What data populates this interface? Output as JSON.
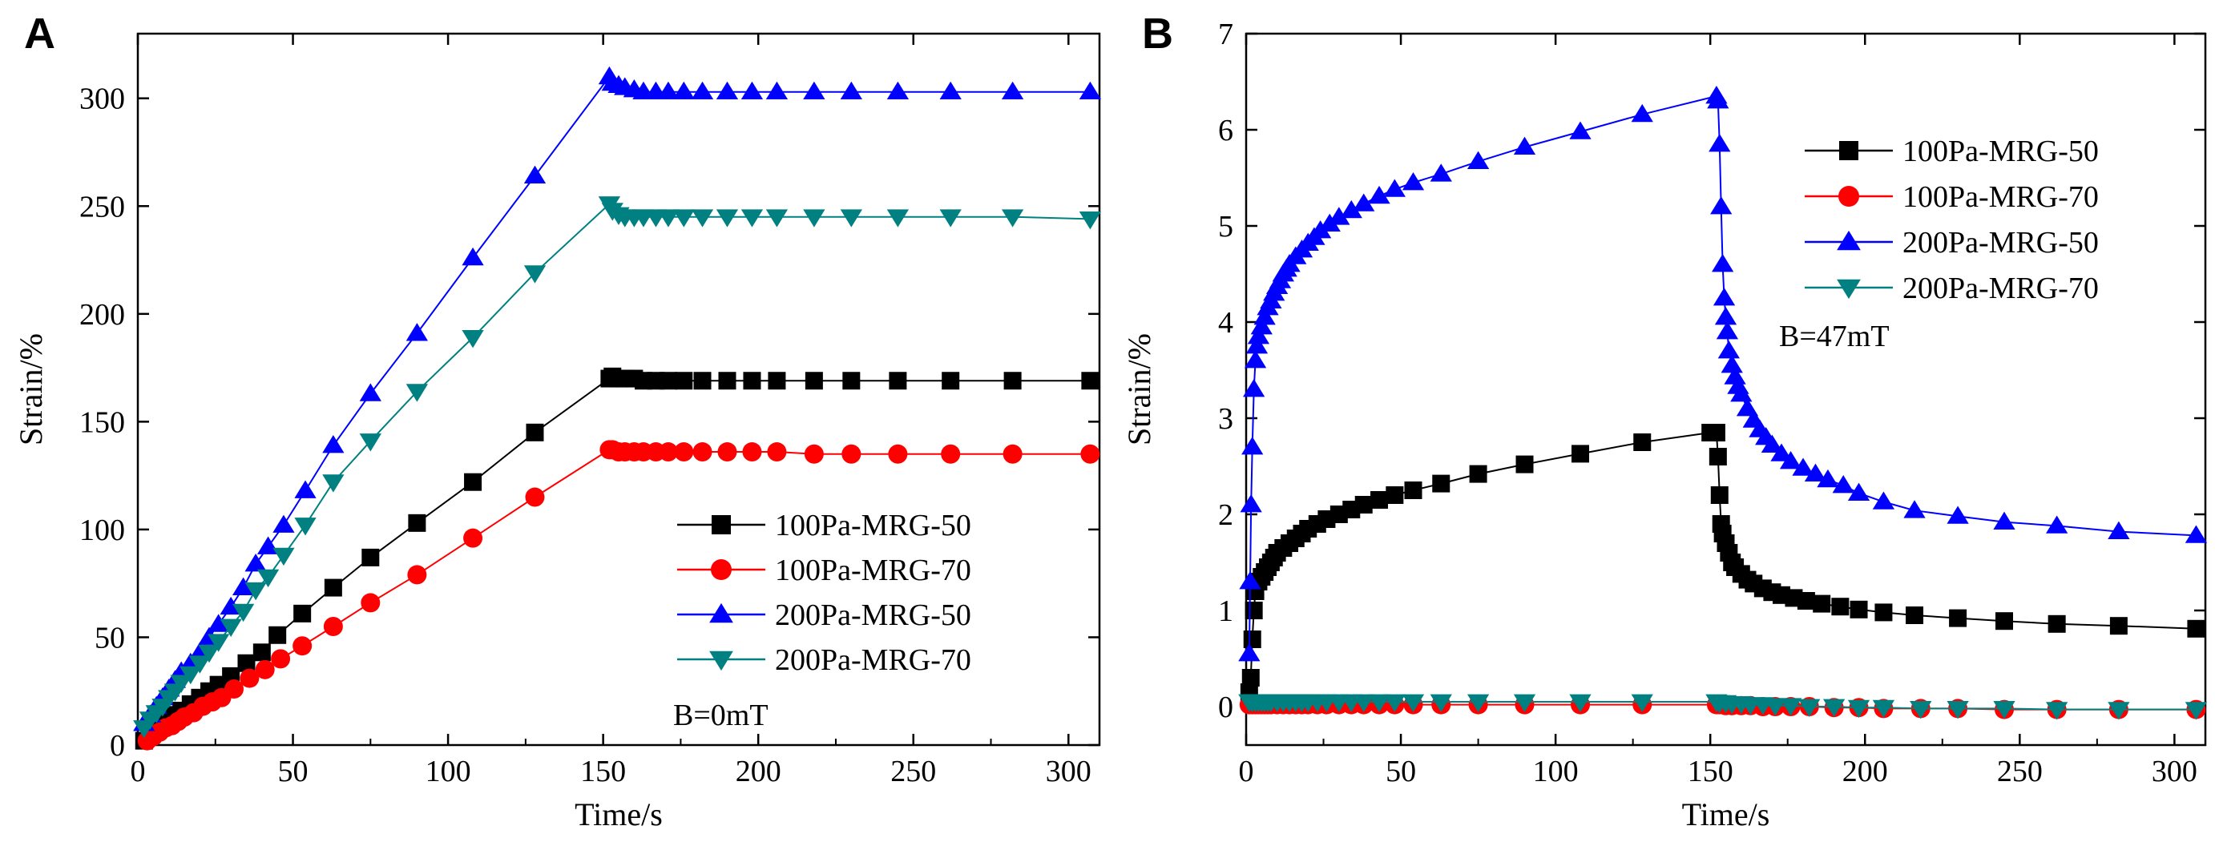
{
  "chart_data": [
    {
      "type": "line",
      "panel": "A",
      "title": "",
      "xlabel": "Time/s",
      "ylabel": "Strain/%",
      "xlim": [
        0,
        310
      ],
      "ylim": [
        0,
        330
      ],
      "xticks": [
        0,
        50,
        100,
        150,
        200,
        250,
        300
      ],
      "yticks": [
        0,
        50,
        100,
        150,
        200,
        250,
        300
      ],
      "annotation": "B=0mT",
      "legend_position": "bottom-right",
      "series": [
        {
          "name": "100Pa-MRG-50",
          "color": "#000000",
          "marker": "square",
          "x": [
            2,
            4,
            6,
            8,
            10,
            12,
            14,
            17,
            20,
            23,
            26,
            30,
            35,
            40,
            45,
            53,
            63,
            75,
            90,
            108,
            128,
            152,
            153,
            155,
            157,
            160,
            163,
            167,
            171,
            176,
            182,
            190,
            198,
            206,
            218,
            230,
            245,
            262,
            282,
            307
          ],
          "y": [
            2,
            5,
            8,
            10,
            12,
            14,
            16,
            19,
            22,
            25,
            28,
            32,
            38,
            43,
            51,
            61,
            73,
            87,
            103,
            122,
            145,
            170,
            171,
            170,
            170,
            170,
            169,
            169,
            169,
            169,
            169,
            169,
            169,
            169,
            169,
            169,
            169,
            169,
            169,
            169
          ]
        },
        {
          "name": "100Pa-MRG-70",
          "color": "#ff0000",
          "marker": "circle",
          "x": [
            3,
            5,
            7,
            9,
            11,
            13,
            15,
            18,
            21,
            24,
            27,
            31,
            36,
            41,
            46,
            53,
            63,
            75,
            90,
            108,
            128,
            152,
            153,
            155,
            157,
            160,
            163,
            167,
            171,
            176,
            182,
            190,
            198,
            206,
            218,
            230,
            245,
            262,
            282,
            307
          ],
          "y": [
            2,
            4,
            6,
            8,
            9,
            11,
            13,
            15,
            18,
            20,
            22,
            26,
            31,
            35,
            40,
            46,
            55,
            66,
            79,
            96,
            115,
            137,
            137,
            136,
            136,
            136,
            136,
            136,
            136,
            136,
            136,
            136,
            136,
            136,
            135,
            135,
            135,
            135,
            135,
            135
          ],
          "stride": 1
        },
        {
          "name": "200Pa-MRG-50",
          "color": "#0000ff",
          "marker": "triangle-up",
          "x": [
            2,
            4,
            6,
            8,
            10,
            12,
            14,
            17,
            20,
            23,
            26,
            30,
            34,
            38,
            42,
            47,
            54,
            63,
            75,
            90,
            108,
            128,
            152,
            153,
            155,
            157,
            160,
            163,
            167,
            171,
            176,
            182,
            190,
            198,
            206,
            218,
            230,
            245,
            262,
            282,
            307
          ],
          "y": [
            10,
            14,
            18,
            22,
            26,
            30,
            34,
            38,
            43,
            50,
            56,
            64,
            73,
            84,
            92,
            102,
            118,
            139,
            163,
            191,
            226,
            264,
            310,
            307,
            306,
            305,
            304,
            303,
            303,
            303,
            303,
            303,
            303,
            303,
            303,
            303,
            303,
            303,
            303,
            303,
            303
          ]
        },
        {
          "name": "200Pa-MRG-70",
          "color": "#008080",
          "marker": "triangle-down",
          "x": [
            2,
            4,
            6,
            8,
            10,
            12,
            14,
            17,
            20,
            23,
            26,
            30,
            34,
            38,
            42,
            47,
            54,
            63,
            75,
            90,
            108,
            128,
            152,
            153,
            155,
            157,
            160,
            163,
            167,
            171,
            176,
            182,
            190,
            198,
            206,
            218,
            230,
            245,
            262,
            282,
            307
          ],
          "y": [
            8,
            12,
            15,
            18,
            22,
            25,
            29,
            33,
            38,
            43,
            48,
            55,
            62,
            72,
            78,
            88,
            102,
            122,
            141,
            164,
            189,
            219,
            251,
            248,
            246,
            245,
            245,
            245,
            245,
            245,
            245,
            245,
            245,
            245,
            245,
            245,
            245,
            245,
            245,
            245,
            244
          ]
        }
      ]
    },
    {
      "type": "line",
      "panel": "B",
      "title": "",
      "xlabel": "Time/s",
      "ylabel": "Strain/%",
      "xlim": [
        0,
        310
      ],
      "ylim": [
        -0.4,
        7
      ],
      "xticks": [
        0,
        50,
        100,
        150,
        200,
        250,
        300
      ],
      "yticks": [
        0,
        1,
        2,
        3,
        4,
        5,
        6,
        7
      ],
      "annotation": "B=47mT",
      "legend_position": "top-right",
      "series": [
        {
          "name": "100Pa-MRG-50",
          "color": "#000000",
          "marker": "square",
          "x": [
            1,
            1.5,
            2,
            2.5,
            3,
            4,
            5,
            6,
            7,
            8,
            9,
            10,
            12,
            14,
            16,
            18,
            20,
            23,
            26,
            30,
            34,
            38,
            43,
            48,
            54,
            63,
            75,
            90,
            108,
            128,
            150,
            152,
            152.5,
            153,
            153.5,
            154,
            155,
            156,
            157,
            158,
            160,
            162,
            164,
            167,
            170,
            173,
            177,
            181,
            186,
            192,
            198,
            206,
            216,
            230,
            245,
            262,
            282,
            307
          ],
          "y": [
            0.15,
            0.3,
            0.7,
            1.0,
            1.2,
            1.3,
            1.35,
            1.4,
            1.45,
            1.5,
            1.55,
            1.6,
            1.65,
            1.7,
            1.75,
            1.8,
            1.85,
            1.9,
            1.95,
            2.0,
            2.05,
            2.1,
            2.15,
            2.2,
            2.25,
            2.32,
            2.42,
            2.52,
            2.63,
            2.75,
            2.85,
            2.85,
            2.6,
            2.2,
            1.9,
            1.8,
            1.7,
            1.6,
            1.5,
            1.45,
            1.38,
            1.32,
            1.28,
            1.23,
            1.19,
            1.16,
            1.13,
            1.1,
            1.07,
            1.04,
            1.01,
            0.98,
            0.95,
            0.92,
            0.89,
            0.86,
            0.84,
            0.81
          ]
        },
        {
          "name": "100Pa-MRG-70",
          "color": "#ff0000",
          "marker": "circle",
          "x": [
            1,
            2,
            3,
            4,
            5,
            6,
            7,
            8,
            10,
            12,
            14,
            16,
            18,
            20,
            23,
            26,
            30,
            34,
            38,
            43,
            48,
            54,
            63,
            75,
            90,
            108,
            128,
            152,
            153,
            155,
            157,
            160,
            163,
            167,
            171,
            176,
            182,
            190,
            198,
            206,
            218,
            230,
            245,
            262,
            282,
            307
          ],
          "y": [
            0.02,
            0.02,
            0.02,
            0.02,
            0.02,
            0.02,
            0.02,
            0.02,
            0.02,
            0.02,
            0.02,
            0.02,
            0.02,
            0.02,
            0.02,
            0.02,
            0.02,
            0.02,
            0.02,
            0.02,
            0.02,
            0.02,
            0.02,
            0.02,
            0.02,
            0.02,
            0.02,
            0.02,
            0.02,
            0.01,
            0.01,
            0.01,
            0.01,
            0.0,
            0.0,
            0.0,
            0.0,
            -0.01,
            -0.01,
            -0.02,
            -0.02,
            -0.02,
            -0.03,
            -0.03,
            -0.03,
            -0.03
          ]
        },
        {
          "name": "200Pa-MRG-50",
          "color": "#0000ff",
          "marker": "triangle-up",
          "x": [
            1,
            1.3,
            1.6,
            2,
            2.5,
            3,
            3.5,
            4,
            5,
            6,
            7,
            8,
            9,
            10,
            11,
            12,
            13,
            14,
            16,
            18,
            20,
            22,
            24,
            27,
            30,
            34,
            38,
            43,
            48,
            54,
            63,
            75,
            90,
            108,
            128,
            152,
            152.5,
            153,
            153.5,
            154,
            154.5,
            155,
            155.5,
            156,
            157,
            158,
            159,
            160,
            162,
            164,
            166,
            168,
            170,
            173,
            176,
            180,
            184,
            188,
            193,
            198,
            206,
            216,
            230,
            245,
            262,
            282,
            307
          ],
          "y": [
            0.55,
            1.3,
            2.1,
            2.7,
            3.3,
            3.6,
            3.75,
            3.85,
            3.95,
            4.05,
            4.15,
            4.22,
            4.3,
            4.37,
            4.43,
            4.5,
            4.55,
            4.6,
            4.68,
            4.75,
            4.82,
            4.88,
            4.95,
            5.02,
            5.09,
            5.16,
            5.23,
            5.31,
            5.38,
            5.45,
            5.54,
            5.67,
            5.82,
            5.98,
            6.16,
            6.35,
            6.3,
            5.85,
            5.2,
            4.6,
            4.25,
            4.05,
            3.9,
            3.7,
            3.55,
            3.43,
            3.33,
            3.25,
            3.1,
            2.98,
            2.88,
            2.8,
            2.72,
            2.63,
            2.55,
            2.48,
            2.42,
            2.36,
            2.3,
            2.22,
            2.13,
            2.04,
            1.98,
            1.92,
            1.88,
            1.82,
            1.78
          ]
        },
        {
          "name": "200Pa-MRG-70",
          "color": "#008080",
          "marker": "triangle-down",
          "x": [
            1,
            2,
            3,
            4,
            5,
            6,
            7,
            8,
            10,
            12,
            14,
            16,
            18,
            20,
            23,
            26,
            30,
            34,
            38,
            43,
            48,
            54,
            63,
            75,
            90,
            108,
            128,
            152,
            153,
            155,
            157,
            160,
            163,
            167,
            171,
            176,
            182,
            190,
            198,
            206,
            218,
            230,
            245,
            262,
            282,
            307
          ],
          "y": [
            0.05,
            0.05,
            0.05,
            0.05,
            0.05,
            0.05,
            0.05,
            0.05,
            0.05,
            0.05,
            0.05,
            0.05,
            0.05,
            0.05,
            0.05,
            0.05,
            0.05,
            0.05,
            0.05,
            0.05,
            0.05,
            0.05,
            0.05,
            0.05,
            0.05,
            0.05,
            0.05,
            0.05,
            0.04,
            0.04,
            0.03,
            0.03,
            0.02,
            0.02,
            0.01,
            0.01,
            0.0,
            0.0,
            -0.01,
            -0.01,
            -0.02,
            -0.02,
            -0.02,
            -0.03,
            -0.03,
            -0.03
          ]
        }
      ]
    }
  ]
}
